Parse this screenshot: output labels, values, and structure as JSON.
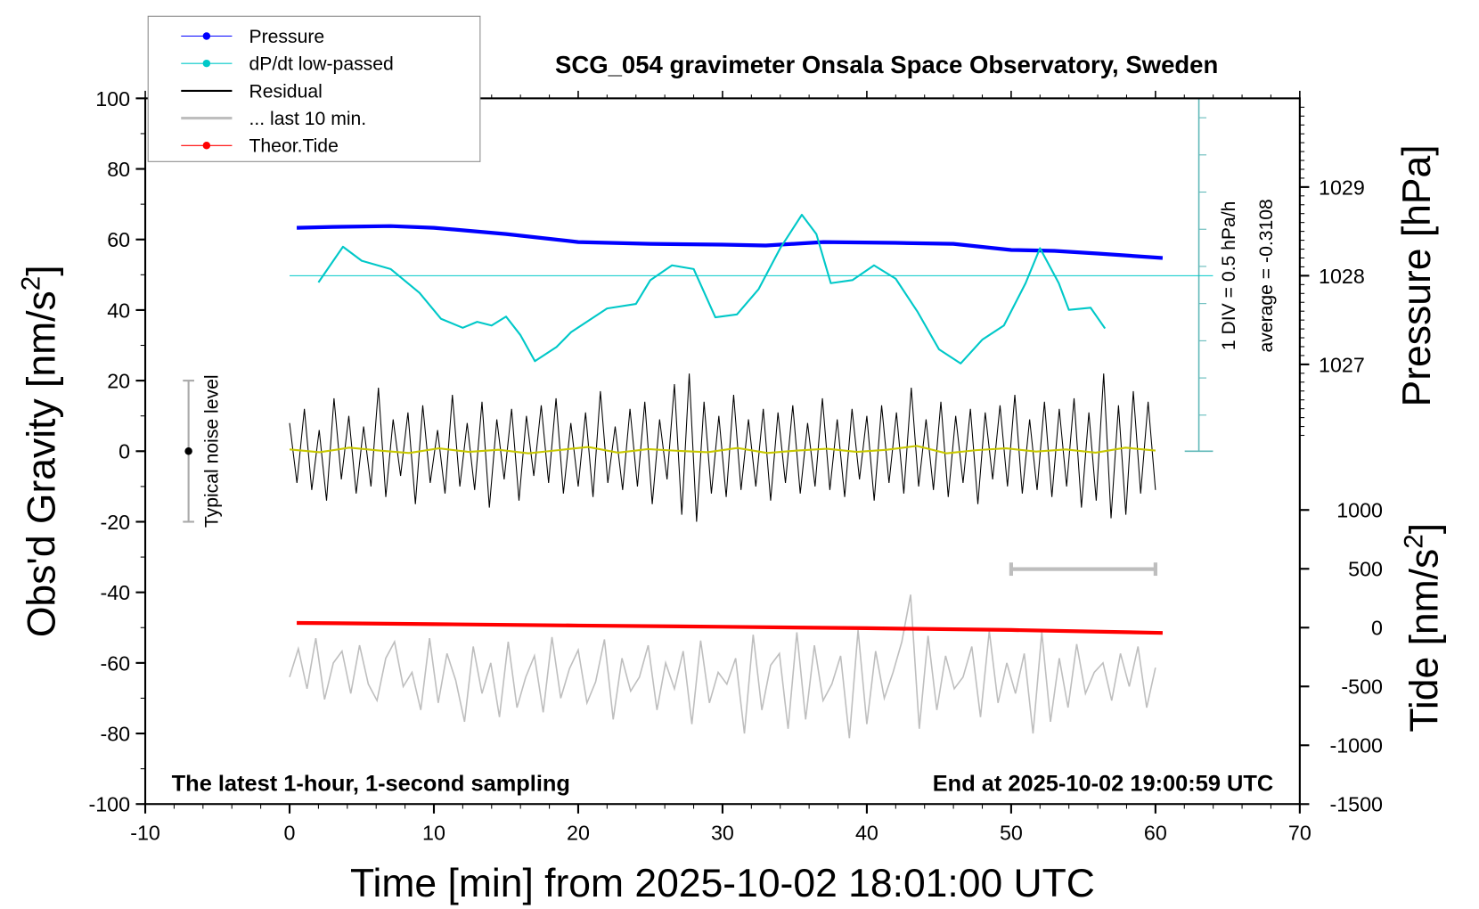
{
  "chart_data": {
    "type": "line",
    "title": "SCG_054 gravimeter Onsala Space Observatory, Sweden",
    "xlabel": "Time [min] from 2025-10-02 18:01:00 UTC",
    "ylabel_left": "Obs'd Gravity [nm/s",
    "ylabel_left_sup": "2",
    "ylabel_left_close": "]",
    "ylabel_right_pressure": "Pressure [hPa]",
    "ylabel_right_tide": "Tide [nm/s",
    "ylabel_right_tide_sup": "2",
    "ylabel_right_tide_close": "]",
    "xlim": [
      -10,
      70
    ],
    "ylim": [
      -100,
      100
    ],
    "x_ticks": [
      -10,
      0,
      10,
      20,
      30,
      40,
      50,
      60,
      70
    ],
    "y_ticks": [
      100,
      80,
      60,
      40,
      20,
      0,
      -20,
      -40,
      -60,
      -80,
      -100
    ],
    "pressure_ticks": [
      1029,
      1028,
      1027
    ],
    "tide_ticks": [
      1000,
      500,
      0,
      -500,
      -1000,
      -1500
    ],
    "annotation_left": "The latest 1-hour, 1-second sampling",
    "annotation_right": "End at 2025-10-02 19:00:59 UTC",
    "dpdt_scale_label": "1 DIV = 0.5 hPa/h",
    "dpdt_average_label": "average = -0.3108",
    "noise_label": "Typical noise level",
    "noise_level": [
      -20,
      20
    ],
    "legend": {
      "placement": "top-left",
      "entries": [
        {
          "label": "Pressure",
          "color": "#0000ff",
          "marker": true
        },
        {
          "label": "dP/dt low-passed",
          "color": "#00c8c8",
          "marker": true
        },
        {
          "label": "Residual",
          "color": "#000000",
          "marker": false
        },
        {
          "label": "... last 10 min.",
          "color": "#bebebe",
          "marker": false
        },
        {
          "label": "Theor.Tide",
          "color": "#ff0000",
          "marker": true
        }
      ]
    },
    "last10_range_min": [
      50,
      60
    ],
    "series": {
      "pressure_hPa": {
        "x": [
          0.5,
          3,
          7,
          10,
          15,
          20,
          25,
          30,
          33,
          37,
          42,
          46,
          50,
          53,
          56,
          60.5
        ],
        "y": [
          1028.54,
          1028.55,
          1028.56,
          1028.54,
          1028.47,
          1028.38,
          1028.36,
          1028.35,
          1028.34,
          1028.38,
          1028.37,
          1028.36,
          1028.29,
          1028.28,
          1028.25,
          1028.2
        ]
      },
      "dpdt_hPa_per_h": {
        "x": [
          2,
          3.7,
          5,
          7,
          9,
          10.5,
          12,
          13,
          14,
          15,
          16,
          17,
          18.5,
          19.5,
          22,
          24,
          25,
          26.5,
          28,
          29.5,
          31,
          32.5,
          34,
          35.5,
          36.5,
          37.5,
          39,
          40.5,
          42,
          43.5,
          45,
          46.5,
          48,
          49.5,
          51,
          52,
          53.3,
          54,
          55.5,
          56.5
        ],
        "y": [
          -0.09,
          0.39,
          0.2,
          0.09,
          -0.23,
          -0.58,
          -0.7,
          -0.62,
          -0.67,
          -0.55,
          -0.8,
          -1.15,
          -0.96,
          -0.76,
          -0.44,
          -0.38,
          -0.06,
          0.14,
          0.09,
          -0.56,
          -0.52,
          -0.18,
          0.37,
          0.82,
          0.56,
          -0.1,
          -0.06,
          0.14,
          -0.04,
          -0.48,
          -0.99,
          -1.18,
          -0.86,
          -0.67,
          -0.1,
          0.37,
          -0.1,
          -0.46,
          -0.43,
          -0.71
        ]
      },
      "residual_nm_s2": [
        8,
        -9,
        12,
        -11,
        6,
        -14,
        15,
        -8,
        10,
        -12,
        7,
        -10,
        18,
        -13,
        9,
        -7,
        11,
        -15,
        13,
        -9,
        6,
        -12,
        16,
        -10,
        8,
        -11,
        14,
        -16,
        9,
        -8,
        12,
        -14,
        10,
        -7,
        13,
        -9,
        15,
        -12,
        8,
        -10,
        11,
        -13,
        17,
        -9,
        7,
        -11,
        12,
        -10,
        14,
        -15,
        9,
        -8,
        19,
        -18,
        22,
        -20,
        14,
        -12,
        10,
        -13,
        16,
        -11,
        9,
        -10,
        12,
        -14,
        11,
        -9,
        13,
        -12,
        8,
        -10,
        15,
        -11,
        9,
        -13,
        12,
        -8,
        10,
        -14,
        13,
        -9,
        11,
        -12,
        18,
        -10,
        9,
        -11,
        14,
        -13,
        10,
        -9,
        12,
        -15,
        11,
        -8,
        13,
        -10,
        16,
        -12,
        9,
        -11,
        14,
        -13,
        12,
        -10,
        15,
        -16,
        11,
        -14,
        22,
        -19,
        13,
        -18,
        17,
        -12,
        14,
        -11
      ],
      "residual_smoothed_nm_s2": [
        0.5,
        -0.3,
        1,
        0.2,
        -0.5,
        0.8,
        -0.2,
        0.4,
        -0.6,
        0.3,
        1.2,
        -0.4,
        0.6,
        0.1,
        -0.3,
        0.9,
        -0.5,
        0.2,
        0.7,
        -0.2,
        0.4,
        1.5,
        -0.6,
        0.3,
        0.8,
        -0.1,
        0.5,
        -0.4,
        1,
        0.2
      ],
      "last10_tide_units": [
        -420,
        -180,
        -520,
        -90,
        -610,
        -300,
        -200,
        -560,
        -150,
        -480,
        -620,
        -260,
        -120,
        -500,
        -380,
        -700,
        -90,
        -640,
        -220,
        -450,
        -800,
        -160,
        -560,
        -300,
        -760,
        -120,
        -680,
        -420,
        -240,
        -720,
        -80,
        -600,
        -350,
        -190,
        -640,
        -460,
        -100,
        -780,
        -260,
        -540,
        -420,
        -150,
        -700,
        -300,
        -520,
        -200,
        -820,
        -110,
        -640,
        -380,
        -480,
        -260,
        -900,
        -60,
        -700,
        -320,
        -220,
        -860,
        -40,
        -780,
        -150,
        -620,
        -480,
        -240,
        -940,
        -20,
        -820,
        -200,
        -600,
        -380,
        -120,
        280,
        -860,
        -70,
        -700,
        -240,
        -520,
        -420,
        -160,
        -760,
        -30,
        -640,
        -300,
        -560,
        -220,
        -900,
        -40,
        -800,
        -260,
        -680,
        -140,
        -560,
        -380,
        -300,
        -620,
        -220,
        -500,
        -160,
        -680,
        -340
      ],
      "theor_tide_tide_units": {
        "x": [
          0.5,
          10,
          20,
          30,
          40,
          50,
          60.5
        ],
        "y": [
          40,
          30,
          18,
          7,
          -5,
          -20,
          -45
        ]
      }
    },
    "colors": {
      "pressure": "#0000ff",
      "dpdt": "#00c8c8",
      "dpdt_axis": "#5fb8b8",
      "residual": "#000000",
      "smoothed": "#c8c800",
      "last10": "#bebebe",
      "tide": "#ff0000"
    }
  }
}
